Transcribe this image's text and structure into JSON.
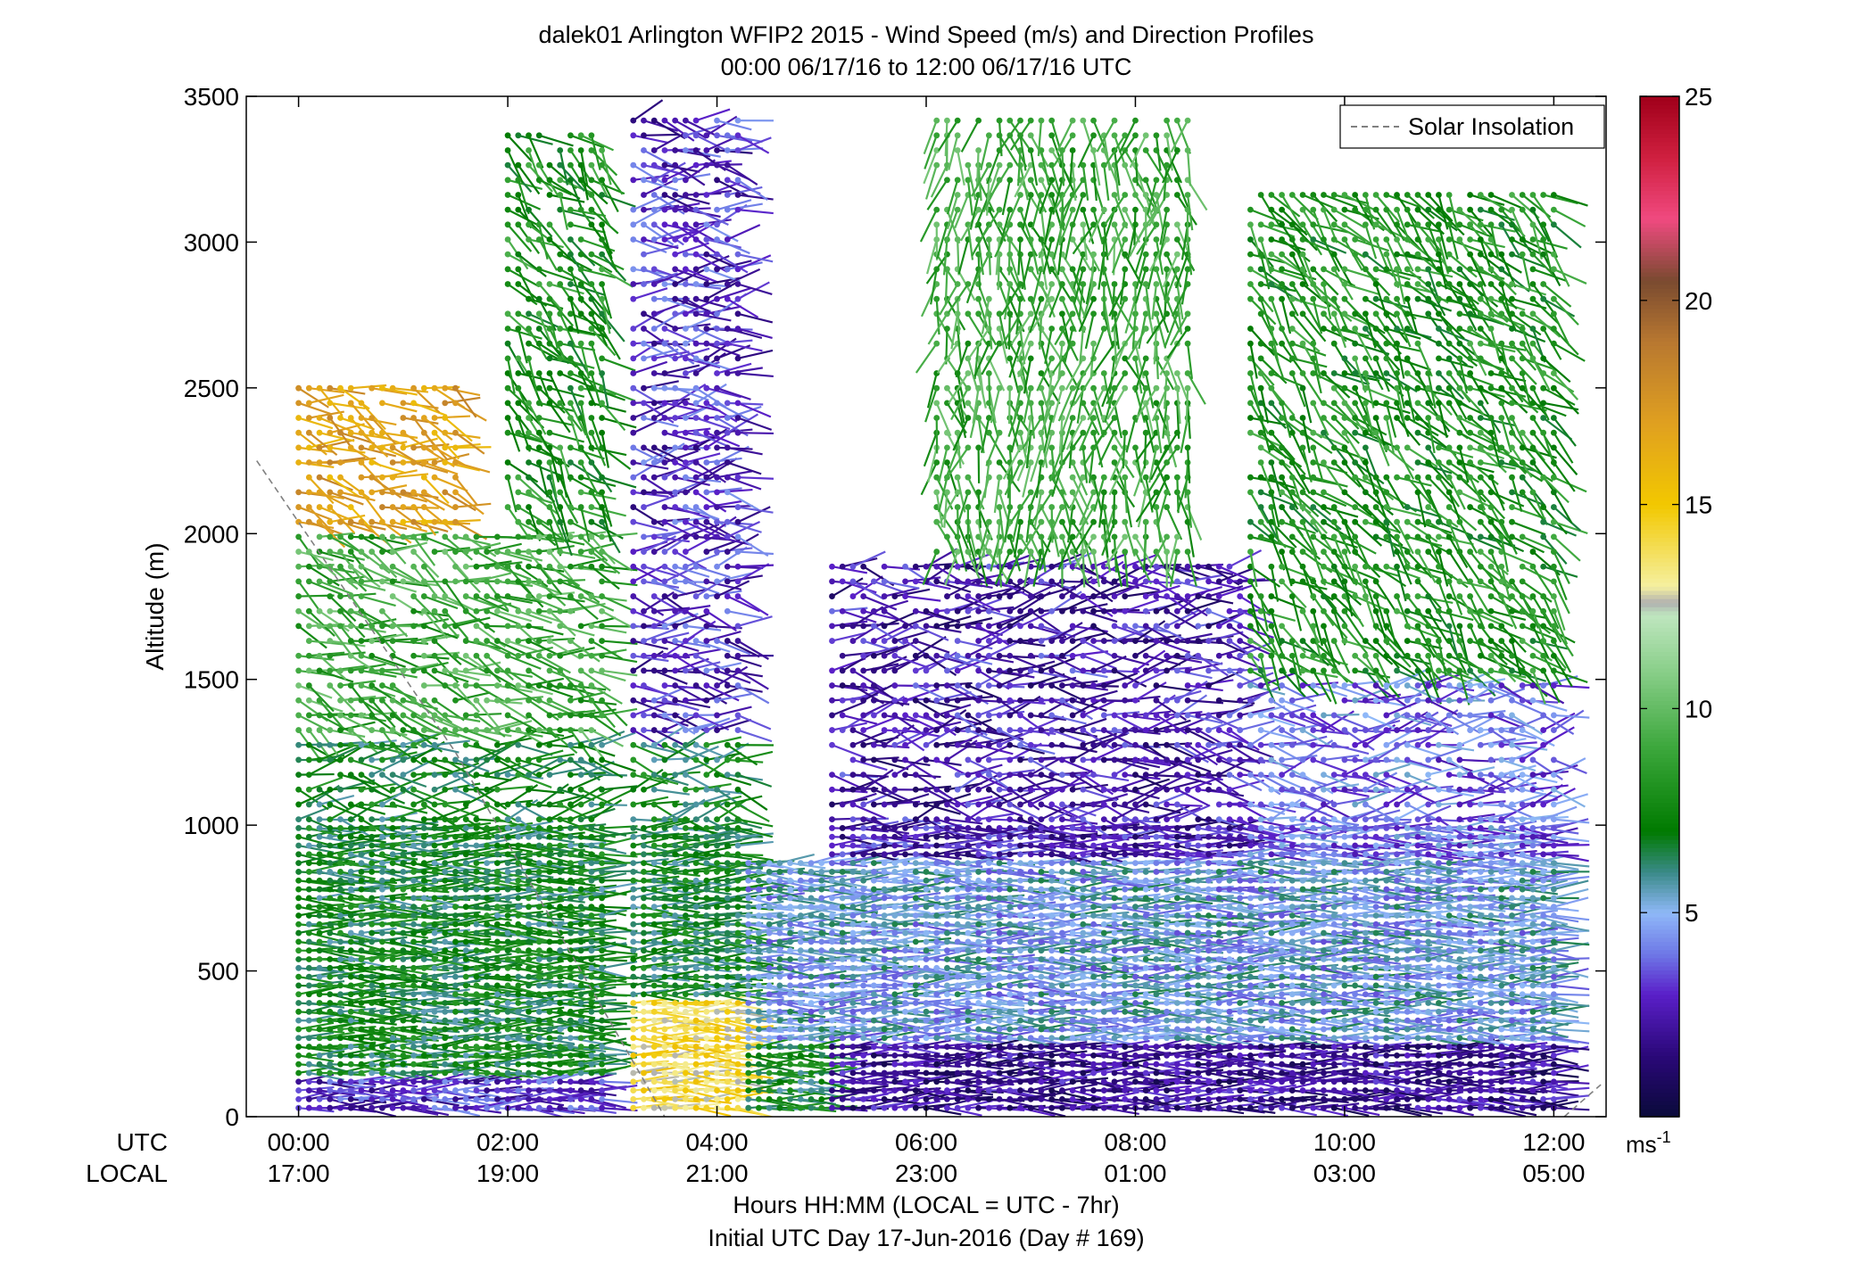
{
  "chart_data": {
    "type": "wind-barb-profile",
    "title_line1": "dalek01 Arlington WFIP2 2015 - Wind Speed (m/s) and Direction Profiles",
    "title_line2": "00:00 06/17/16 to 12:00 06/17/16  UTC",
    "ylabel": "Altitude (m)",
    "xlabel_line1": "Hours HH:MM  (LOCAL = UTC - 7hr)",
    "xlabel_line2": "Initial UTC Day 17-Jun-2016 (Day # 169)",
    "xlim_hours": [
      -0.5,
      12.5
    ],
    "ylim": [
      0,
      3500
    ],
    "y_ticks": [
      0,
      500,
      1000,
      1500,
      2000,
      2500,
      3000,
      3500
    ],
    "y_tick_labels": [
      "0",
      "500",
      "1000",
      "1500",
      "2000",
      "2500",
      "3000",
      "3500"
    ],
    "x_ticks_hours": [
      0,
      2,
      4,
      6,
      8,
      10,
      12
    ],
    "utc_row_label": "UTC",
    "local_row_label": "LOCAL",
    "utc_tick_labels": [
      "00:00",
      "02:00",
      "04:00",
      "06:00",
      "08:00",
      "10:00",
      "12:00"
    ],
    "local_tick_labels": [
      "17:00",
      "19:00",
      "21:00",
      "23:00",
      "01:00",
      "03:00",
      "05:00"
    ],
    "legend": {
      "label": "Solar Insolation",
      "placement": "top-right",
      "style": "dashed",
      "color": "#808080"
    },
    "solar_insolation_line": [
      {
        "hour": -0.4,
        "altitude": 2250
      },
      {
        "hour": 1.5,
        "altitude": 1250
      },
      {
        "hour": 3.5,
        "altitude": 0
      }
    ],
    "solar_insolation_line_2": [
      {
        "hour": 12.1,
        "altitude": 0
      },
      {
        "hour": 12.45,
        "altitude": 110
      }
    ],
    "colorbar": {
      "min": 0,
      "max": 25,
      "ticks": [
        5,
        10,
        15,
        20,
        25
      ],
      "tick_labels": [
        "5",
        "10",
        "15",
        "20",
        "25"
      ],
      "unit_label": "ms",
      "unit_exponent": "-1",
      "stops": [
        {
          "v": 0,
          "color": "#0a0a3a"
        },
        {
          "v": 1.5,
          "color": "#2a0878"
        },
        {
          "v": 3,
          "color": "#5a1fc8"
        },
        {
          "v": 4,
          "color": "#6e78e6"
        },
        {
          "v": 5,
          "color": "#8fb8f8"
        },
        {
          "v": 6,
          "color": "#3a8a88"
        },
        {
          "v": 7,
          "color": "#007a00"
        },
        {
          "v": 9,
          "color": "#3aa63a"
        },
        {
          "v": 11,
          "color": "#8cd08c"
        },
        {
          "v": 12.3,
          "color": "#bfe6bf"
        },
        {
          "v": 12.6,
          "color": "#b0b0b0"
        },
        {
          "v": 13,
          "color": "#f5f0a0"
        },
        {
          "v": 15,
          "color": "#f2c800"
        },
        {
          "v": 17,
          "color": "#e0a020"
        },
        {
          "v": 19,
          "color": "#b87830"
        },
        {
          "v": 20.5,
          "color": "#7a4a30"
        },
        {
          "v": 22,
          "color": "#f04a80"
        },
        {
          "v": 23.5,
          "color": "#d02040"
        },
        {
          "v": 25,
          "color": "#a0001a"
        }
      ]
    },
    "grid": false,
    "barb_spacing": {
      "dt_hours": 0.1,
      "dz_meters": 30
    },
    "wind_profile_regimes": [
      {
        "hours": [
          0,
          3
        ],
        "altitude_m": [
          0,
          150
        ],
        "speed_ms": 3,
        "direction": "westerly"
      },
      {
        "hours": [
          0,
          3
        ],
        "altitude_m": [
          150,
          1300
        ],
        "speed_ms": 7,
        "direction": "westerly"
      },
      {
        "hours": [
          0,
          3
        ],
        "altitude_m": [
          1300,
          2000
        ],
        "speed_ms": 9,
        "direction": "west-southwest"
      },
      {
        "hours": [
          0,
          1.6
        ],
        "altitude_m": [
          2000,
          2500
        ],
        "speed_ms": 17,
        "direction": "west-southwest"
      },
      {
        "hours": [
          2,
          3
        ],
        "altitude_m": [
          2000,
          3400
        ],
        "speed_ms": 8,
        "direction": "southwest"
      },
      {
        "hours": [
          3.2,
          4.3
        ],
        "altitude_m": [
          0,
          400
        ],
        "speed_ms": 14,
        "direction": "northerly"
      },
      {
        "hours": [
          3.2,
          4.3
        ],
        "altitude_m": [
          400,
          1300
        ],
        "speed_ms": 7,
        "direction": "northerly"
      },
      {
        "hours": [
          3.2,
          4.3
        ],
        "altitude_m": [
          1300,
          3500
        ],
        "speed_ms": 3,
        "direction": "westerly"
      },
      {
        "hours": [
          4.3,
          5.5
        ],
        "altitude_m": [
          0,
          250
        ],
        "speed_ms": 7,
        "direction": "northerly"
      },
      {
        "hours": [
          4.3,
          12
        ],
        "altitude_m": [
          250,
          900
        ],
        "speed_ms": 5,
        "direction": "westerly"
      },
      {
        "hours": [
          5,
          12
        ],
        "altitude_m": [
          0,
          250
        ],
        "speed_ms": 2,
        "direction": "westerly"
      },
      {
        "hours": [
          5,
          9
        ],
        "altitude_m": [
          900,
          1900
        ],
        "speed_ms": 2.5,
        "direction": "northerly"
      },
      {
        "hours": [
          6,
          8.5
        ],
        "altitude_m": [
          1900,
          3500
        ],
        "speed_ms": 9,
        "direction": "southerly"
      },
      {
        "hours": [
          9,
          12
        ],
        "altitude_m": [
          900,
          1500
        ],
        "speed_ms": 4,
        "direction": "westerly"
      },
      {
        "hours": [
          9,
          12
        ],
        "altitude_m": [
          1500,
          3200
        ],
        "speed_ms": 8,
        "direction": "southwest"
      }
    ]
  }
}
